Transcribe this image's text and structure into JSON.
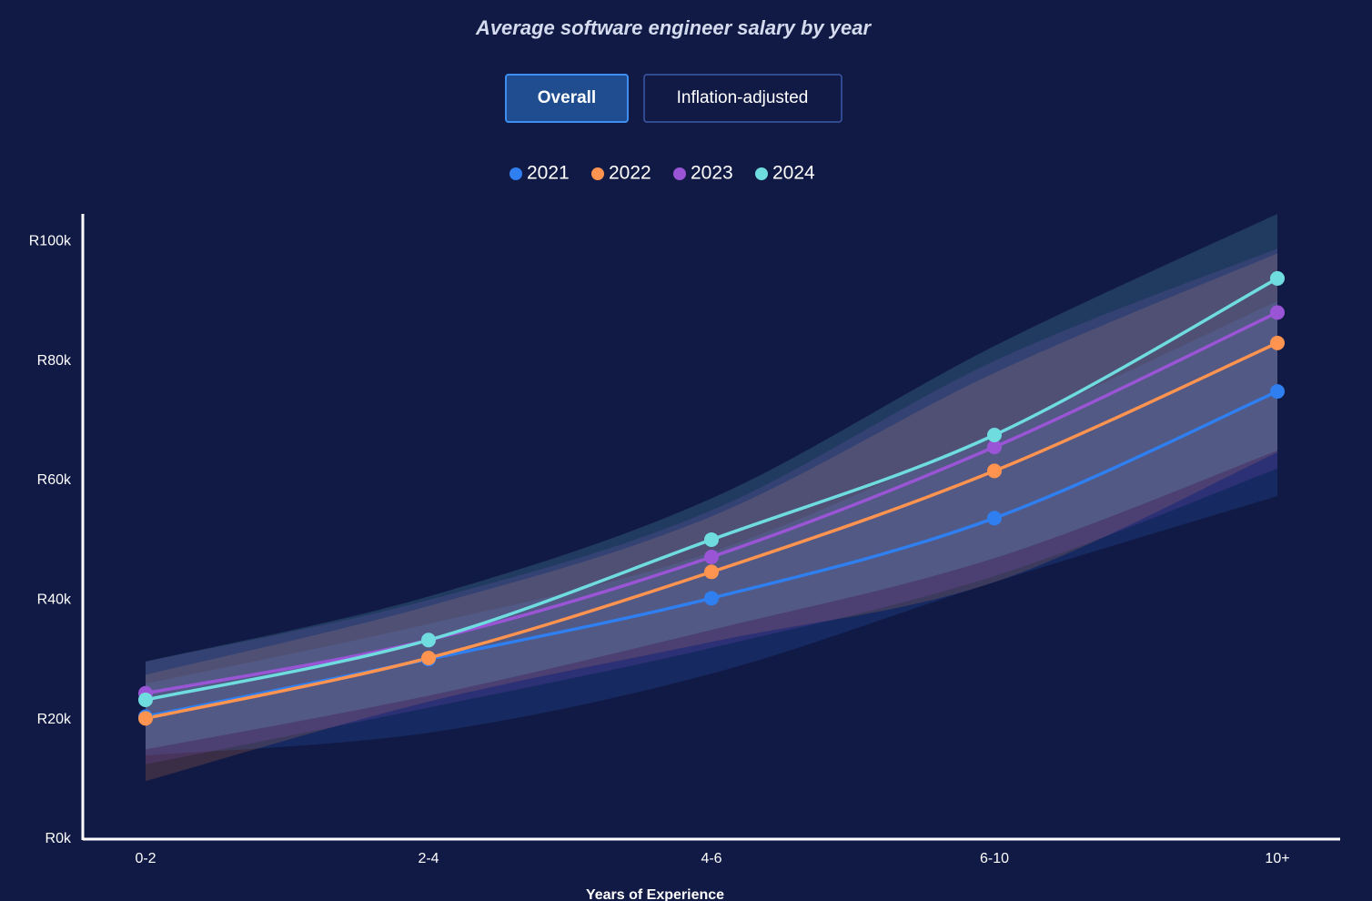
{
  "chart_data": {
    "type": "line",
    "title": "Average software engineer salary by year",
    "buttons": [
      "Overall",
      "Inflation-adjusted"
    ],
    "x_label": "Years of Experience",
    "categories": [
      "0-2",
      "2-4",
      "4-6",
      "6-10",
      "10+"
    ],
    "ylim": [
      0,
      104.6
    ],
    "yticks": [
      {
        "value": 0,
        "label": "R0k"
      },
      {
        "value": 20,
        "label": "R20k"
      },
      {
        "value": 40,
        "label": "R40k"
      },
      {
        "value": 60,
        "label": "R60k"
      },
      {
        "value": 80,
        "label": "R80k"
      },
      {
        "value": 100,
        "label": "R100k"
      }
    ],
    "series": [
      {
        "name": "2021",
        "color": "#2f7ff0",
        "values": [
          20.5,
          30.1,
          40.3,
          53.7,
          74.9
        ],
        "low": [
          14,
          17.8,
          27.7,
          43,
          57.4
        ],
        "high": [
          26,
          36,
          48,
          68,
          90
        ]
      },
      {
        "name": "2022",
        "color": "#ff9350",
        "values": [
          20.2,
          30.3,
          44.7,
          61.6,
          83.0
        ],
        "low": [
          9.7,
          23,
          33,
          43,
          64.7
        ],
        "high": [
          27.5,
          39,
          54,
          78,
          98
        ]
      },
      {
        "name": "2023",
        "color": "#9a55d6",
        "values": [
          24.4,
          33.3,
          47.2,
          65.6,
          88.1
        ],
        "low": [
          12.5,
          22,
          32,
          44,
          62
        ],
        "high": [
          29.7,
          40,
          55,
          80,
          98.8
        ]
      },
      {
        "name": "2024",
        "color": "#6fdce0",
        "values": [
          23.3,
          33.3,
          50.1,
          67.6,
          93.8
        ],
        "low": [
          15,
          24,
          35,
          47,
          65
        ],
        "high": [
          29.7,
          40.6,
          57,
          82.5,
          104.6
        ]
      }
    ]
  }
}
